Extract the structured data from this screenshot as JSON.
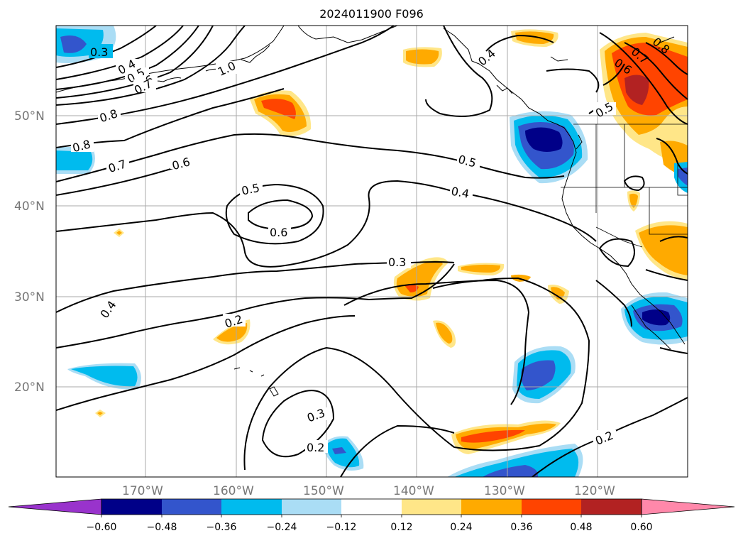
{
  "title": "2024011900 F096",
  "lat_labels": [
    "50°N",
    "40°N",
    "30°N",
    "20°N"
  ],
  "lon_labels": [
    "170°W",
    "160°W",
    "150°W",
    "140°W",
    "130°W",
    "120°W"
  ],
  "contour_labels": [
    "0.3",
    "0.4",
    "0.5",
    "0.6",
    "0.7",
    "1.0",
    "0.8",
    "0.8",
    "0.7",
    "0.6",
    "0.5",
    "0.6",
    "0.5",
    "0.4",
    "0.3",
    "0.4",
    "0.2",
    "0.3",
    "0.2",
    "0.2",
    "0.8",
    "0.7",
    "0.6",
    "0.5",
    "0.4"
  ],
  "colorbar": {
    "tick_labels": [
      "−0.60",
      "−0.48",
      "−0.36",
      "−0.24",
      "−0.12",
      "0.12",
      "0.24",
      "0.36",
      "0.48",
      "0.60"
    ],
    "colors": [
      "#9933cc",
      "#000088",
      "#3355cc",
      "#00bbee",
      "#aaddf5",
      "#ffffff",
      "#ffe688",
      "#ffaa00",
      "#ff4400",
      "#b22222",
      "#ff88aa"
    ]
  },
  "colors": {
    "neg_light": "#aaddf5",
    "neg_mid": "#00bbee",
    "neg_strong": "#3355cc",
    "neg_max": "#000088",
    "pos_light": "#ffe688",
    "pos_mid": "#ffaa00",
    "pos_strong": "#ff4400",
    "pos_max": "#b22222"
  }
}
